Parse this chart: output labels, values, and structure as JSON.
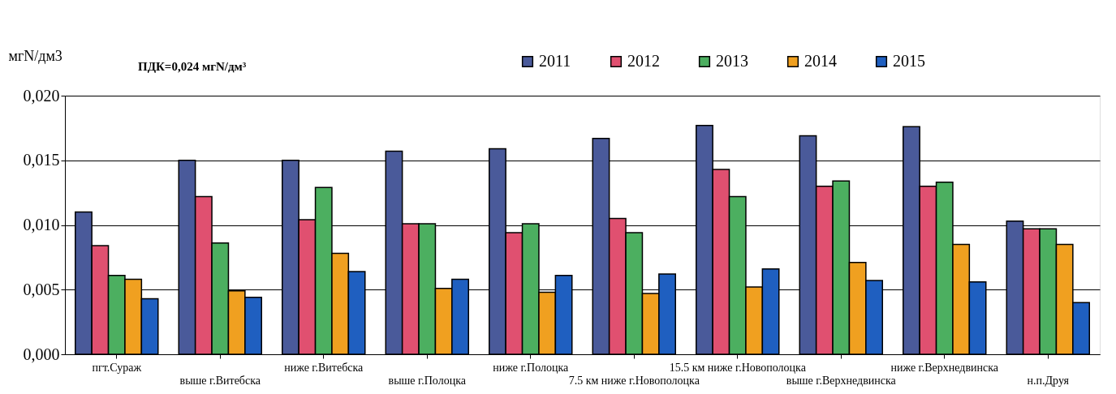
{
  "chart_data": {
    "type": "bar",
    "ylabel": "мгN/дм3",
    "annotations": [
      "ПДК=0,024 мгN/дм³"
    ],
    "categories": [
      "пгт.Сураж",
      "выше г.Витебска",
      "ниже г.Витебска",
      "выше г.Полоцка",
      "ниже г.Полоцка",
      "7.5 км ниже г.Новополоцка",
      "15.5 км ниже г.Новополоцка",
      "выше г.Верхнедвинска",
      "ниже г.Верхнедвинска",
      "н.п.Друя"
    ],
    "series": [
      {
        "name": "2011",
        "color": "#4a5a9a",
        "values": [
          0.011,
          0.015,
          0.015,
          0.0157,
          0.0159,
          0.0167,
          0.0177,
          0.0169,
          0.0176,
          0.0103
        ]
      },
      {
        "name": "2012",
        "color": "#e05070",
        "values": [
          0.0084,
          0.0122,
          0.0104,
          0.0101,
          0.0094,
          0.0105,
          0.0143,
          0.013,
          0.013,
          0.0097
        ]
      },
      {
        "name": "2013",
        "color": "#4caf60",
        "values": [
          0.0061,
          0.0086,
          0.0129,
          0.0101,
          0.0101,
          0.0094,
          0.0122,
          0.0134,
          0.0133,
          0.0097
        ]
      },
      {
        "name": "2014",
        "color": "#f0a020",
        "values": [
          0.0058,
          0.0049,
          0.0078,
          0.0051,
          0.0048,
          0.0047,
          0.0052,
          0.0071,
          0.0085,
          0.0085
        ]
      },
      {
        "name": "2015",
        "color": "#1f5fc0",
        "values": [
          0.0043,
          0.0044,
          0.0064,
          0.0058,
          0.0061,
          0.0062,
          0.0066,
          0.0057,
          0.0056,
          0.004
        ]
      }
    ],
    "ylim": [
      0,
      0.02
    ],
    "yticks": [
      {
        "value": 0,
        "label": "0,000"
      },
      {
        "value": 0.005,
        "label": "0,005"
      },
      {
        "value": 0.01,
        "label": "0,010"
      },
      {
        "value": 0.015,
        "label": "0,015"
      },
      {
        "value": 0.02,
        "label": "0,020"
      }
    ],
    "grid": "y",
    "legend": "top right"
  }
}
